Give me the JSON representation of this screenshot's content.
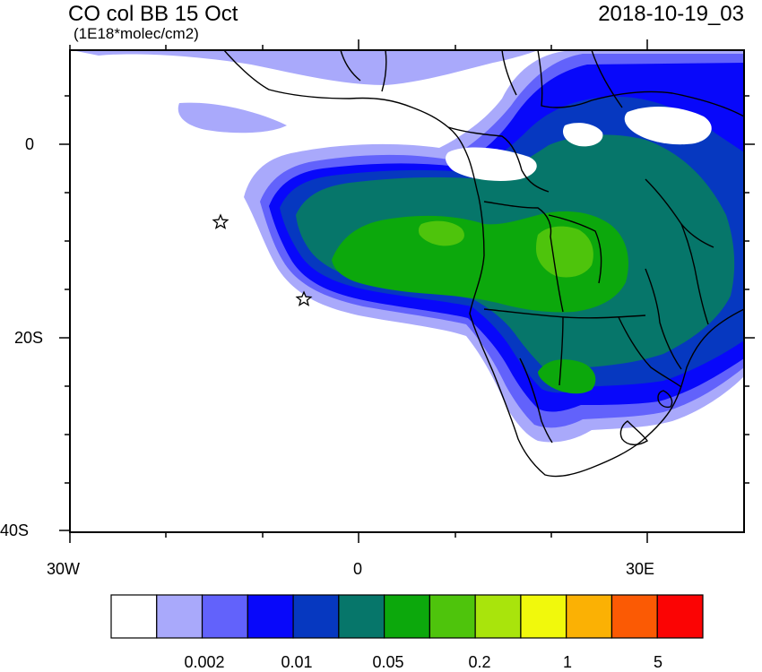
{
  "header": {
    "title": "CO col BB 15 Oct",
    "subtitle": "(1E18*molec/cm2)",
    "timestamp": "2018-10-19_03"
  },
  "axes": {
    "x_labels": [
      "30W",
      "0",
      "30E"
    ],
    "y_labels": [
      "0",
      "20S",
      "40S"
    ]
  },
  "colorbar": {
    "colors": [
      "#ffffff",
      "#a9a9fb",
      "#6262fb",
      "#0808fa",
      "#0638c0",
      "#06766a",
      "#0ca80c",
      "#4ec40c",
      "#a9e40c",
      "#f1f90c",
      "#fbb104",
      "#fb5a04",
      "#fb0404"
    ],
    "labels": [
      "0.002",
      "0.01",
      "0.05",
      "0.2",
      "1",
      "5"
    ]
  },
  "markers": {
    "type": "star",
    "count": 2
  }
}
